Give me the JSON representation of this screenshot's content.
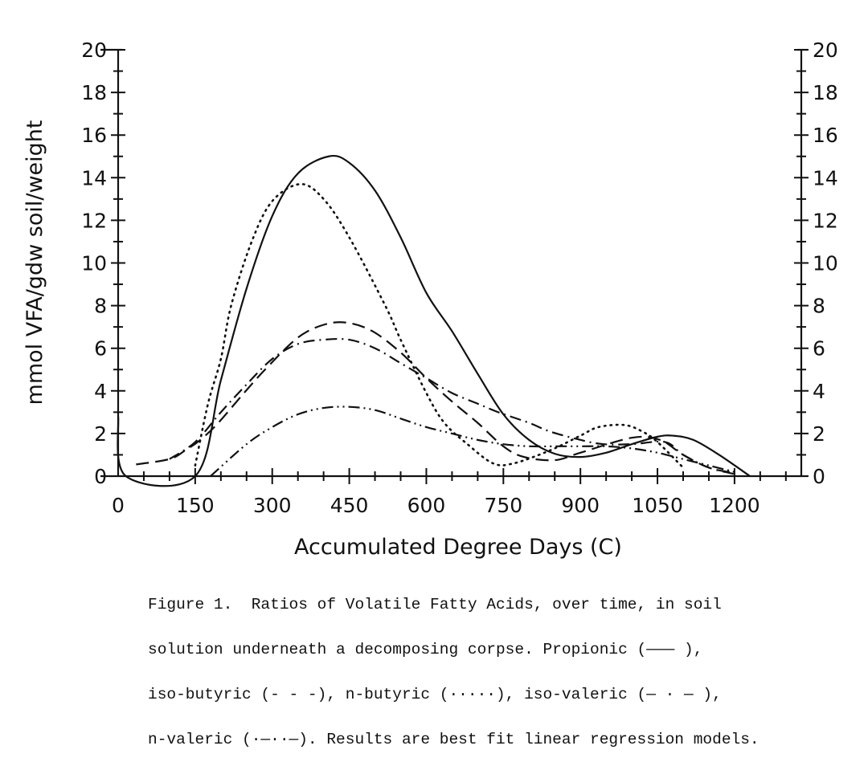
{
  "chart_data": {
    "type": "line",
    "title": "",
    "xlabel": "Accumulated Degree Days (C)",
    "ylabel": "mmol VFA/gdw soil/weight",
    "xlim": [
      0,
      1330
    ],
    "ylim": [
      0,
      20
    ],
    "x_ticks": [
      "0",
      "150",
      "300",
      "450",
      "600",
      "750",
      "900",
      "1050",
      "1200"
    ],
    "y_ticks": [
      "0",
      "2",
      "4",
      "6",
      "8",
      "10",
      "12",
      "14",
      "16",
      "18",
      "20"
    ],
    "grid": false,
    "legend": "none (described in caption)",
    "series": [
      {
        "name": "Propionic",
        "style": "solid",
        "points": [
          [
            0,
            2.8
          ],
          [
            15,
            0
          ],
          [
            150,
            0
          ],
          [
            200,
            4.5
          ],
          [
            250,
            8.8
          ],
          [
            300,
            12.2
          ],
          [
            350,
            14.2
          ],
          [
            410,
            15.0
          ],
          [
            450,
            14.7
          ],
          [
            500,
            13.4
          ],
          [
            550,
            11.2
          ],
          [
            600,
            8.6
          ],
          [
            650,
            6.8
          ],
          [
            700,
            4.8
          ],
          [
            750,
            2.9
          ],
          [
            800,
            1.7
          ],
          [
            850,
            1.05
          ],
          [
            900,
            0.9
          ],
          [
            950,
            1.1
          ],
          [
            1000,
            1.5
          ],
          [
            1050,
            1.85
          ],
          [
            1080,
            1.9
          ],
          [
            1120,
            1.7
          ],
          [
            1170,
            1.0
          ],
          [
            1230,
            0
          ]
        ]
      },
      {
        "name": "iso-butyric",
        "style": "dashed",
        "points": [
          [
            35,
            0.55
          ],
          [
            100,
            0.8
          ],
          [
            130,
            1.2
          ],
          [
            160,
            1.7
          ],
          [
            195,
            2.5
          ],
          [
            245,
            3.9
          ],
          [
            290,
            5.1
          ],
          [
            350,
            6.5
          ],
          [
            400,
            7.1
          ],
          [
            445,
            7.2
          ],
          [
            495,
            6.8
          ],
          [
            550,
            5.8
          ],
          [
            600,
            4.6
          ],
          [
            650,
            3.5
          ],
          [
            700,
            2.5
          ],
          [
            750,
            1.4
          ],
          [
            790,
            0.9
          ],
          [
            850,
            0.75
          ],
          [
            900,
            1.1
          ],
          [
            1000,
            1.8
          ],
          [
            1055,
            1.7
          ],
          [
            1100,
            1.0
          ],
          [
            1150,
            0.4
          ],
          [
            1200,
            0.15
          ]
        ]
      },
      {
        "name": "n-butyric",
        "style": "dotted",
        "points": [
          [
            150,
            0.5
          ],
          [
            175,
            3.4
          ],
          [
            200,
            5.5
          ],
          [
            220,
            8.0
          ],
          [
            260,
            11.0
          ],
          [
            300,
            12.9
          ],
          [
            355,
            13.7
          ],
          [
            400,
            13.0
          ],
          [
            450,
            11.2
          ],
          [
            520,
            8.0
          ],
          [
            550,
            6.4
          ],
          [
            600,
            3.9
          ],
          [
            635,
            2.5
          ],
          [
            680,
            1.5
          ],
          [
            730,
            0.6
          ],
          [
            770,
            0.6
          ],
          [
            840,
            1.2
          ],
          [
            900,
            1.9
          ],
          [
            935,
            2.3
          ],
          [
            985,
            2.4
          ],
          [
            1020,
            2.1
          ],
          [
            1050,
            1.6
          ],
          [
            1100,
            0.4
          ]
        ]
      },
      {
        "name": "iso-valeric",
        "style": "dash-dot",
        "points": [
          [
            100,
            0.8
          ],
          [
            150,
            1.6
          ],
          [
            200,
            3.0
          ],
          [
            250,
            4.3
          ],
          [
            300,
            5.5
          ],
          [
            350,
            6.2
          ],
          [
            400,
            6.4
          ],
          [
            450,
            6.4
          ],
          [
            500,
            6.0
          ],
          [
            550,
            5.3
          ],
          [
            600,
            4.6
          ],
          [
            650,
            3.9
          ],
          [
            700,
            3.4
          ],
          [
            740,
            3.0
          ],
          [
            800,
            2.5
          ],
          [
            840,
            2.1
          ],
          [
            900,
            1.7
          ],
          [
            945,
            1.5
          ],
          [
            1000,
            1.5
          ],
          [
            1065,
            1.6
          ],
          [
            1100,
            1.0
          ],
          [
            1150,
            0.4
          ],
          [
            1200,
            0.1
          ]
        ]
      },
      {
        "name": "n-valeric",
        "style": "dash-dot-dot",
        "points": [
          [
            180,
            0
          ],
          [
            250,
            1.5
          ],
          [
            300,
            2.3
          ],
          [
            350,
            2.9
          ],
          [
            400,
            3.2
          ],
          [
            450,
            3.25
          ],
          [
            500,
            3.1
          ],
          [
            550,
            2.7
          ],
          [
            600,
            2.3
          ],
          [
            650,
            2.0
          ],
          [
            700,
            1.7
          ],
          [
            750,
            1.5
          ],
          [
            800,
            1.4
          ],
          [
            850,
            1.4
          ],
          [
            900,
            1.4
          ],
          [
            950,
            1.4
          ],
          [
            1000,
            1.3
          ],
          [
            1050,
            1.1
          ],
          [
            1100,
            0.8
          ],
          [
            1150,
            0.5
          ],
          [
            1200,
            0.2
          ]
        ]
      }
    ]
  },
  "caption": {
    "lines": [
      "Figure 1.  Ratios of Volatile Fatty Acids, over time, in soil",
      "solution underneath a decomposing corpse. Propionic (——— ),",
      "iso-butyric (- - -), n-butyric (·····), iso-valeric (— · — ),",
      "n-valeric (·—··—). Results are best fit linear regression models."
    ]
  }
}
